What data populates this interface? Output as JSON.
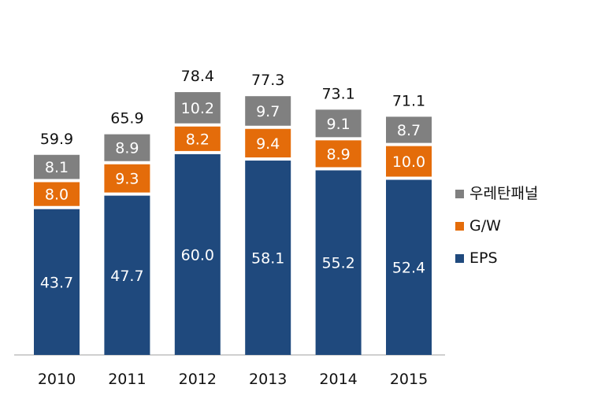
{
  "chart_data": {
    "type": "bar",
    "stacked": true,
    "categories": [
      "2010",
      "2011",
      "2012",
      "2013",
      "2014",
      "2015"
    ],
    "series": [
      {
        "name": "EPS",
        "color": "#1f497d",
        "values": [
          43.7,
          47.7,
          60.0,
          58.1,
          55.2,
          52.4
        ]
      },
      {
        "name": "G/W",
        "color": "#e46c0a",
        "values": [
          8.0,
          9.3,
          8.2,
          9.4,
          8.9,
          10.0
        ]
      },
      {
        "name": "우레탄패널",
        "color": "#808080",
        "values": [
          8.1,
          8.9,
          10.2,
          9.7,
          9.1,
          8.7
        ]
      }
    ],
    "totals": [
      59.9,
      65.9,
      78.4,
      77.3,
      73.1,
      71.1
    ],
    "title": "",
    "xlabel": "",
    "ylabel": "",
    "ylim": [
      0,
      80
    ],
    "legend_position": "right"
  }
}
